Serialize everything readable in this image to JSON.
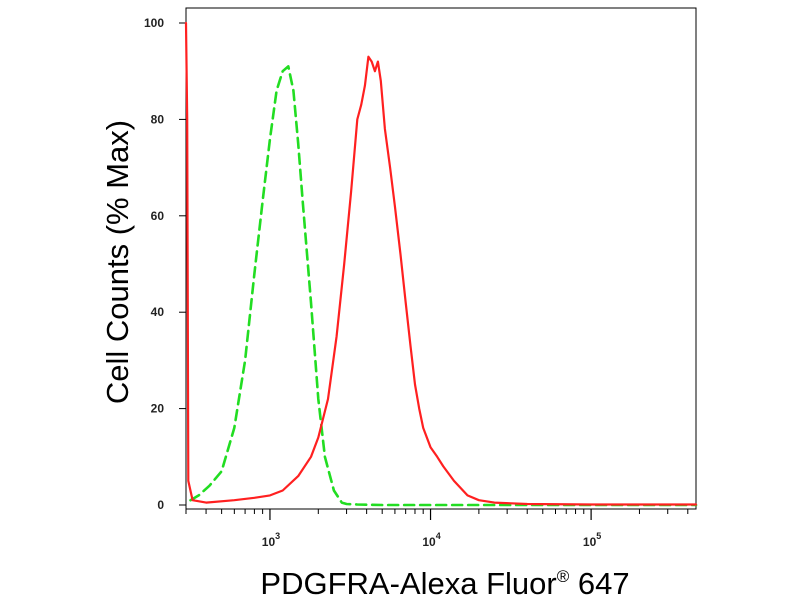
{
  "chart_data": {
    "type": "line",
    "title": "",
    "xlabel": "PDGFRA-Alexa Fluor",
    "xlabel_superscript": "®",
    "xlabel_suffix": " 647",
    "ylabel": "Cell Counts (% Max)",
    "x_scale": "log",
    "xlim": [
      300,
      450000
    ],
    "ylim": [
      0,
      100
    ],
    "y_ticks": [
      0,
      20,
      40,
      60,
      80,
      100
    ],
    "x_major_ticks": [
      {
        "value": 1000,
        "base": "10",
        "exp": "3"
      },
      {
        "value": 10000,
        "base": "10",
        "exp": "4"
      },
      {
        "value": 100000,
        "base": "10",
        "exp": "5"
      }
    ],
    "grid": false,
    "legend": "none",
    "series": [
      {
        "color": "#22dd22",
        "dash": "dashed",
        "x": [
          320,
          360,
          420,
          500,
          600,
          700,
          800,
          900,
          1000,
          1100,
          1200,
          1300,
          1400,
          1500,
          1600,
          1800,
          2000,
          2200,
          2500,
          2800,
          3000,
          3500,
          5000,
          8000,
          20000,
          100000,
          450000
        ],
        "y": [
          1,
          2,
          4,
          7,
          16,
          30,
          48,
          63,
          76,
          86,
          90,
          91,
          86,
          75,
          63,
          42,
          22,
          10,
          3,
          0.5,
          0.2,
          0.1,
          0,
          0,
          0,
          0,
          0
        ]
      },
      {
        "color": "#ff2020",
        "dash": "solid",
        "x": [
          300,
          305,
          310,
          330,
          400,
          600,
          800,
          1000,
          1200,
          1500,
          1800,
          2000,
          2300,
          2600,
          2900,
          3200,
          3500,
          3700,
          3900,
          4100,
          4300,
          4500,
          4700,
          4900,
          5200,
          5600,
          6000,
          6500,
          7000,
          7500,
          8000,
          8500,
          9000,
          10000,
          11000,
          12000,
          14000,
          17000,
          20000,
          25000,
          40000,
          100000,
          450000
        ],
        "y": [
          100,
          80,
          5,
          1,
          0.5,
          1,
          1.5,
          2,
          3,
          6,
          10,
          14,
          22,
          35,
          50,
          65,
          80,
          83,
          87,
          93,
          92,
          90,
          92,
          88,
          78,
          70,
          62,
          52,
          42,
          33,
          25,
          20,
          16,
          12,
          10,
          8,
          5,
          2,
          1,
          0.5,
          0.2,
          0.1,
          0.1
        ]
      }
    ]
  }
}
